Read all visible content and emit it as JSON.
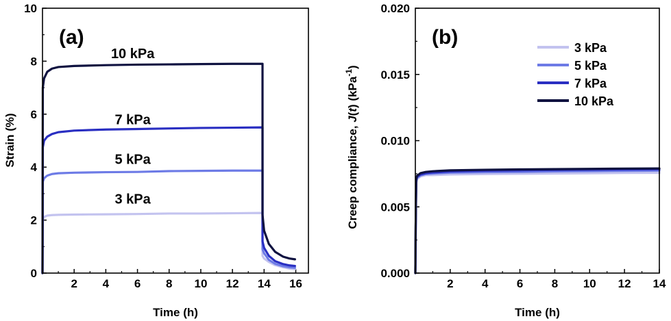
{
  "series_colors": {
    "3 kPa": "#c3c3ef",
    "5 kPa": "#6d7be6",
    "7 kPa": "#2a2fc2",
    "10 kPa": "#0f1240"
  },
  "chart_data": [
    {
      "type": "line",
      "panel_label": "(a)",
      "xlabel": "Time (h)",
      "ylabel": "Strain (%)",
      "xlim": [
        0,
        16.8
      ],
      "ylim": [
        0,
        10
      ],
      "xticks": [
        2,
        4,
        6,
        8,
        10,
        12,
        14,
        16
      ],
      "yticks": [
        0,
        2,
        4,
        6,
        8,
        10
      ],
      "grid": false,
      "legend": false,
      "unload_time": 13.9,
      "series": [
        {
          "name": "3 kPa",
          "label": "3 kPa",
          "points": [
            [
              0.0,
              0.0
            ],
            [
              0.02,
              2.02
            ],
            [
              0.1,
              2.12
            ],
            [
              0.3,
              2.17
            ],
            [
              0.6,
              2.19
            ],
            [
              1,
              2.2
            ],
            [
              2,
              2.21
            ],
            [
              4,
              2.22
            ],
            [
              6,
              2.23
            ],
            [
              8,
              2.25
            ],
            [
              10,
              2.25
            ],
            [
              12,
              2.26
            ],
            [
              13.9,
              2.27
            ],
            [
              13.9,
              0.65
            ],
            [
              14.0,
              0.55
            ],
            [
              14.3,
              0.42
            ],
            [
              14.7,
              0.3
            ],
            [
              15.2,
              0.22
            ],
            [
              15.6,
              0.17
            ],
            [
              15.95,
              0.15
            ]
          ],
          "label_pos": [
            5.7,
            2.62
          ]
        },
        {
          "name": "5 kPa",
          "label": "5 kPa",
          "points": [
            [
              0.0,
              0.0
            ],
            [
              0.02,
              3.45
            ],
            [
              0.1,
              3.58
            ],
            [
              0.3,
              3.68
            ],
            [
              0.6,
              3.74
            ],
            [
              1,
              3.77
            ],
            [
              2,
              3.79
            ],
            [
              4,
              3.81
            ],
            [
              6,
              3.82
            ],
            [
              8,
              3.85
            ],
            [
              10,
              3.86
            ],
            [
              12,
              3.87
            ],
            [
              13.9,
              3.87
            ],
            [
              13.9,
              0.9
            ],
            [
              14.0,
              0.75
            ],
            [
              14.3,
              0.5
            ],
            [
              14.7,
              0.35
            ],
            [
              15.2,
              0.26
            ],
            [
              15.6,
              0.22
            ],
            [
              15.95,
              0.2
            ]
          ],
          "label_pos": [
            5.7,
            4.12
          ]
        },
        {
          "name": "7 kPa",
          "label": "7 kPa",
          "points": [
            [
              0.0,
              0.0
            ],
            [
              0.02,
              4.75
            ],
            [
              0.1,
              5.0
            ],
            [
              0.3,
              5.15
            ],
            [
              0.6,
              5.25
            ],
            [
              1,
              5.32
            ],
            [
              2,
              5.38
            ],
            [
              4,
              5.42
            ],
            [
              6,
              5.44
            ],
            [
              8,
              5.46
            ],
            [
              10,
              5.48
            ],
            [
              12,
              5.49
            ],
            [
              13.9,
              5.5
            ],
            [
              13.9,
              1.2
            ],
            [
              14.0,
              0.95
            ],
            [
              14.3,
              0.65
            ],
            [
              14.7,
              0.45
            ],
            [
              15.2,
              0.34
            ],
            [
              15.6,
              0.29
            ],
            [
              15.95,
              0.27
            ]
          ],
          "label_pos": [
            5.7,
            5.62
          ]
        },
        {
          "name": "10 kPa",
          "label": "10 kPa",
          "points": [
            [
              0.0,
              0.0
            ],
            [
              0.02,
              7.0
            ],
            [
              0.1,
              7.35
            ],
            [
              0.3,
              7.6
            ],
            [
              0.6,
              7.72
            ],
            [
              1,
              7.78
            ],
            [
              2,
              7.82
            ],
            [
              4,
              7.85
            ],
            [
              6,
              7.87
            ],
            [
              8,
              7.88
            ],
            [
              10,
              7.89
            ],
            [
              12,
              7.9
            ],
            [
              13.9,
              7.9
            ],
            [
              13.9,
              2.2
            ],
            [
              14.0,
              1.6
            ],
            [
              14.3,
              1.1
            ],
            [
              14.7,
              0.8
            ],
            [
              15.2,
              0.62
            ],
            [
              15.6,
              0.55
            ],
            [
              15.95,
              0.52
            ]
          ],
          "label_pos": [
            5.7,
            8.12
          ]
        }
      ]
    },
    {
      "type": "line",
      "panel_label": "(b)",
      "xlabel": "Time (h)",
      "ylabel_prefix": "Creep compliance, ",
      "ylabel_J": "J",
      "ylabel_t": "t",
      "ylabel_unit": "kPa",
      "ylabel_exp": "-1",
      "xlim": [
        0,
        14
      ],
      "ylim": [
        0,
        0.02
      ],
      "xticks": [
        2,
        4,
        6,
        8,
        10,
        12,
        14
      ],
      "yticks": [
        "0.000",
        "0.005",
        "0.010",
        "0.015",
        "0.020"
      ],
      "grid": false,
      "legend": "top-right",
      "legend_entries": [
        "3 kPa",
        "5 kPa",
        "7 kPa",
        "10 kPa"
      ],
      "series": [
        {
          "name": "3 kPa",
          "points": [
            [
              0.0,
              0.0
            ],
            [
              0.02,
              0.0033
            ],
            [
              0.05,
              0.0068
            ],
            [
              0.1,
              0.0071
            ],
            [
              0.3,
              0.0073
            ],
            [
              0.6,
              0.0074
            ],
            [
              1,
              0.0074
            ],
            [
              2,
              0.00745
            ],
            [
              4,
              0.00748
            ],
            [
              6,
              0.0075
            ],
            [
              8,
              0.00752
            ],
            [
              10,
              0.00754
            ],
            [
              12,
              0.00756
            ],
            [
              14,
              0.00757
            ]
          ]
        },
        {
          "name": "5 kPa",
          "points": [
            [
              0.0,
              0.0
            ],
            [
              0.02,
              0.0034
            ],
            [
              0.05,
              0.0069
            ],
            [
              0.1,
              0.0072
            ],
            [
              0.3,
              0.00738
            ],
            [
              0.6,
              0.00748
            ],
            [
              1,
              0.00752
            ],
            [
              2,
              0.00758
            ],
            [
              4,
              0.00762
            ],
            [
              6,
              0.00764
            ],
            [
              8,
              0.00768
            ],
            [
              10,
              0.0077
            ],
            [
              12,
              0.00772
            ],
            [
              14,
              0.00774
            ]
          ]
        },
        {
          "name": "7 kPa",
          "points": [
            [
              0.0,
              0.0
            ],
            [
              0.02,
              0.0034
            ],
            [
              0.05,
              0.007
            ],
            [
              0.1,
              0.00728
            ],
            [
              0.3,
              0.00745
            ],
            [
              0.6,
              0.00755
            ],
            [
              1,
              0.0076
            ],
            [
              2,
              0.00768
            ],
            [
              4,
              0.00773
            ],
            [
              6,
              0.00776
            ],
            [
              8,
              0.00779
            ],
            [
              10,
              0.00781
            ],
            [
              12,
              0.00783
            ],
            [
              14,
              0.00785
            ]
          ]
        },
        {
          "name": "10 kPa",
          "points": [
            [
              0.0,
              0.0
            ],
            [
              0.02,
              0.0035
            ],
            [
              0.05,
              0.0071
            ],
            [
              0.1,
              0.00735
            ],
            [
              0.3,
              0.00755
            ],
            [
              0.6,
              0.00764
            ],
            [
              1,
              0.00769
            ],
            [
              2,
              0.00776
            ],
            [
              4,
              0.0078
            ],
            [
              6,
              0.00783
            ],
            [
              8,
              0.00785
            ],
            [
              10,
              0.00787
            ],
            [
              12,
              0.00789
            ],
            [
              14,
              0.0079
            ]
          ]
        }
      ]
    }
  ]
}
